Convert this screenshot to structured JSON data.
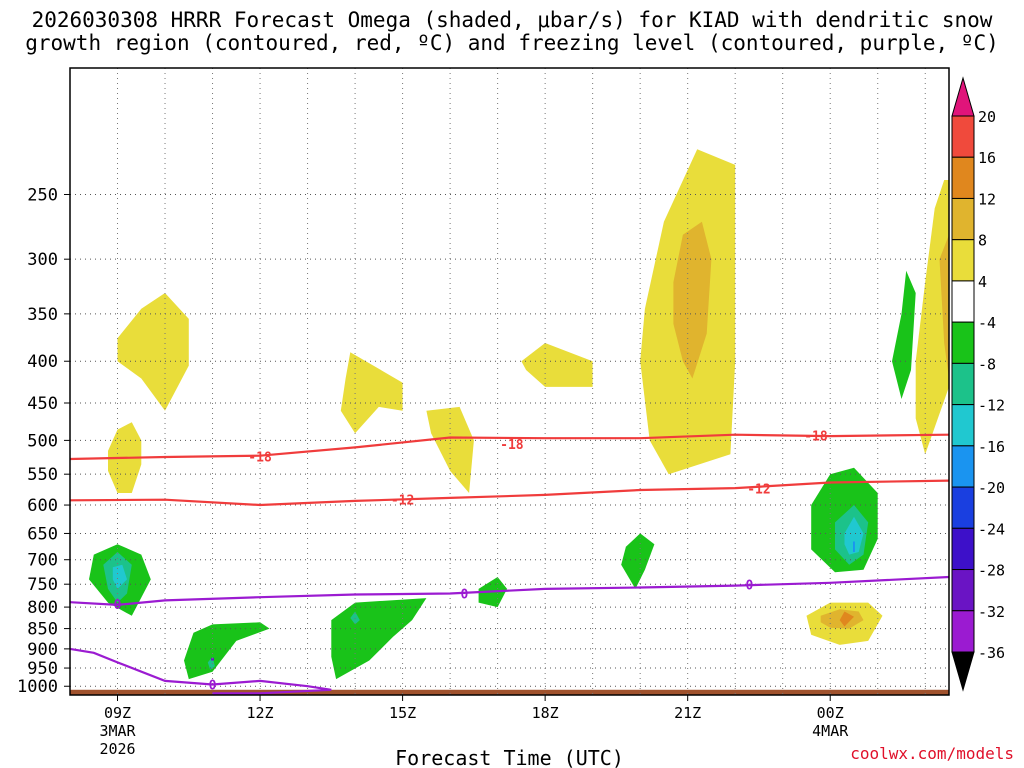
{
  "title_line1": "2026030308 HRRR Forecast Omega (shaded, μbar/s) for KIAD with dendritic snow",
  "title_line2": "growth region (contoured, red, ºC) and freezing level (contoured, purple, ºC)",
  "credit": "coolwx.com/models",
  "chart_data": {
    "type": "time-height cross section (filled contours)",
    "xlabel": "Forecast Time (UTC)",
    "x_hours_range": [
      8,
      26.5
    ],
    "x_ticks": [
      {
        "hour": 9,
        "label": "09Z",
        "sub1": "3MAR",
        "sub2": "2026"
      },
      {
        "hour": 12,
        "label": "12Z"
      },
      {
        "hour": 15,
        "label": "15Z"
      },
      {
        "hour": 18,
        "label": "18Z"
      },
      {
        "hour": 21,
        "label": "21Z"
      },
      {
        "hour": 24,
        "label": "00Z",
        "sub1": "4MAR"
      }
    ],
    "y_axis": "pressure (hPa), log scale",
    "y_range_hpa": [
      1025,
      175
    ],
    "y_ticks": [
      250,
      300,
      350,
      400,
      450,
      500,
      550,
      600,
      650,
      700,
      750,
      800,
      850,
      900,
      950,
      1000
    ],
    "colorbar": {
      "levels": [
        -36,
        -32,
        -28,
        -24,
        -20,
        -16,
        -12,
        -8,
        -4,
        4,
        8,
        12,
        16,
        20
      ],
      "colors": [
        "#aaaaaa",
        "#9b1bd1",
        "#6a14c4",
        "#3d10c9",
        "#1a3fe0",
        "#1a94f0",
        "#20c8d0",
        "#1cc28a",
        "#19c319",
        "#ffffff",
        "#e9dd3a",
        "#e0b42e",
        "#e0871e",
        "#f04a3c",
        "#e0147a"
      ]
    },
    "isotherms": [
      {
        "value": -18,
        "label": "-18",
        "color": "#f03c3c",
        "points": [
          [
            8,
            527
          ],
          [
            10,
            524
          ],
          [
            12,
            522
          ],
          [
            14,
            510
          ],
          [
            16,
            496
          ],
          [
            18,
            497
          ],
          [
            20,
            497
          ],
          [
            22,
            492
          ],
          [
            24,
            494
          ],
          [
            26.5,
            492
          ]
        ]
      },
      {
        "value": -12,
        "label": "-12",
        "color": "#f03c3c",
        "points": [
          [
            8,
            592
          ],
          [
            10,
            591
          ],
          [
            12,
            600
          ],
          [
            14,
            593
          ],
          [
            16,
            588
          ],
          [
            18,
            583
          ],
          [
            20,
            575
          ],
          [
            22,
            572
          ],
          [
            24,
            563
          ],
          [
            26.5,
            560
          ]
        ]
      },
      {
        "value": 0,
        "label": "0",
        "color": "#9b1bd1",
        "points": [
          [
            8,
            789
          ],
          [
            9,
            795
          ],
          [
            10,
            785
          ],
          [
            12,
            778
          ],
          [
            14,
            772
          ],
          [
            16,
            770
          ],
          [
            18,
            760
          ],
          [
            20,
            757
          ],
          [
            22,
            753
          ],
          [
            24,
            747
          ],
          [
            26.5,
            735
          ]
        ]
      },
      {
        "value": 0,
        "label": "0",
        "color": "#9b1bd1",
        "points": [
          [
            8,
            900
          ],
          [
            8.5,
            910
          ],
          [
            9,
            935
          ],
          [
            10,
            985
          ],
          [
            11,
            995
          ],
          [
            12,
            985
          ],
          [
            13,
            1000
          ],
          [
            13.5,
            1010
          ],
          [
            12,
            1020
          ],
          [
            11,
            1020
          ]
        ]
      }
    ],
    "omega_regions": [
      {
        "level": 4,
        "points": [
          [
            9,
            375
          ],
          [
            9.5,
            345
          ],
          [
            10,
            330
          ],
          [
            10.5,
            355
          ],
          [
            10.5,
            405
          ],
          [
            10,
            460
          ],
          [
            9.5,
            420
          ],
          [
            9,
            400
          ]
        ]
      },
      {
        "level": 4,
        "points": [
          [
            9,
            485
          ],
          [
            9.3,
            475
          ],
          [
            9.5,
            500
          ],
          [
            9.5,
            535
          ],
          [
            9.3,
            580
          ],
          [
            9,
            580
          ],
          [
            8.8,
            545
          ],
          [
            8.8,
            515
          ]
        ]
      },
      {
        "level": 4,
        "points": [
          [
            13.8,
            420
          ],
          [
            13.9,
            390
          ],
          [
            15,
            425
          ],
          [
            15,
            460
          ],
          [
            14.5,
            455
          ],
          [
            14,
            490
          ],
          [
            13.7,
            460
          ]
        ]
      },
      {
        "level": 4,
        "points": [
          [
            15.5,
            460
          ],
          [
            16.2,
            455
          ],
          [
            16.5,
            500
          ],
          [
            16.4,
            580
          ],
          [
            16,
            545
          ],
          [
            15.6,
            490
          ]
        ]
      },
      {
        "level": 4,
        "points": [
          [
            17.5,
            400
          ],
          [
            18,
            380
          ],
          [
            19,
            400
          ],
          [
            19,
            430
          ],
          [
            18,
            430
          ],
          [
            17.6,
            410
          ]
        ]
      },
      {
        "level": 4,
        "points": [
          [
            20.1,
            345
          ],
          [
            20.5,
            270
          ],
          [
            21.2,
            220
          ],
          [
            22,
            230
          ],
          [
            22,
            400
          ],
          [
            21.9,
            520
          ],
          [
            20.6,
            550
          ],
          [
            20.2,
            500
          ],
          [
            20,
            400
          ]
        ]
      },
      {
        "level": 8,
        "points": [
          [
            20.7,
            320
          ],
          [
            20.9,
            280
          ],
          [
            21.3,
            270
          ],
          [
            21.5,
            300
          ],
          [
            21.4,
            370
          ],
          [
            21.1,
            420
          ],
          [
            20.9,
            400
          ],
          [
            20.7,
            360
          ]
        ]
      },
      {
        "level": 4,
        "points": [
          [
            23.5,
            820
          ],
          [
            24,
            790
          ],
          [
            24.8,
            790
          ],
          [
            25.1,
            820
          ],
          [
            24.8,
            880
          ],
          [
            24.2,
            890
          ],
          [
            23.6,
            865
          ]
        ]
      },
      {
        "level": 8,
        "points": [
          [
            23.8,
            820
          ],
          [
            24.2,
            805
          ],
          [
            24.6,
            810
          ],
          [
            24.7,
            830
          ],
          [
            24.4,
            850
          ],
          [
            24,
            848
          ],
          [
            23.8,
            835
          ]
        ]
      },
      {
        "level": 12,
        "points": [
          [
            24.3,
            810
          ],
          [
            24.5,
            822
          ],
          [
            24.3,
            845
          ],
          [
            24.2,
            830
          ]
        ]
      },
      {
        "level": 4,
        "points": [
          [
            26,
            320
          ],
          [
            26.2,
            260
          ],
          [
            26.4,
            240
          ],
          [
            26.5,
            240
          ],
          [
            26.5,
            430
          ],
          [
            26,
            520
          ],
          [
            25.8,
            470
          ],
          [
            25.8,
            400
          ]
        ]
      },
      {
        "level": 8,
        "points": [
          [
            26.3,
            300
          ],
          [
            26.5,
            280
          ],
          [
            26.5,
            420
          ],
          [
            26.4,
            380
          ]
        ]
      },
      {
        "level": -4,
        "points": [
          [
            8.5,
            690
          ],
          [
            9,
            670
          ],
          [
            9.5,
            690
          ],
          [
            9.7,
            740
          ],
          [
            9.3,
            820
          ],
          [
            8.8,
            790
          ],
          [
            8.4,
            740
          ]
        ]
      },
      {
        "level": -8,
        "points": [
          [
            8.7,
            710
          ],
          [
            9,
            685
          ],
          [
            9.3,
            710
          ],
          [
            9.2,
            770
          ],
          [
            9,
            790
          ],
          [
            8.8,
            760
          ]
        ]
      },
      {
        "level": -12,
        "points": [
          [
            8.9,
            715
          ],
          [
            9.1,
            710
          ],
          [
            9.2,
            740
          ],
          [
            9,
            760
          ],
          [
            8.9,
            740
          ]
        ]
      },
      {
        "level": -4,
        "points": [
          [
            10.6,
            860
          ],
          [
            11,
            840
          ],
          [
            12,
            835
          ],
          [
            12.2,
            850
          ],
          [
            11.5,
            880
          ],
          [
            11,
            960
          ],
          [
            10.5,
            980
          ],
          [
            10.4,
            930
          ]
        ]
      },
      {
        "level": -8,
        "points": [
          [
            10.9,
            935
          ],
          [
            11,
            920
          ],
          [
            11.05,
            945
          ],
          [
            10.95,
            955
          ]
        ]
      },
      {
        "level": -28,
        "points": [
          [
            10.97,
            923
          ],
          [
            11.03,
            923
          ],
          [
            11.03,
            930
          ],
          [
            10.97,
            930
          ]
        ]
      },
      {
        "level": -4,
        "points": [
          [
            13.5,
            830
          ],
          [
            14,
            790
          ],
          [
            15.5,
            780
          ],
          [
            15.2,
            830
          ],
          [
            14.8,
            870
          ],
          [
            14.3,
            930
          ],
          [
            13.6,
            980
          ],
          [
            13.5,
            920
          ]
        ]
      },
      {
        "level": -8,
        "points": [
          [
            13.9,
            825
          ],
          [
            14,
            810
          ],
          [
            14.1,
            830
          ],
          [
            14,
            840
          ]
        ]
      },
      {
        "level": -4,
        "points": [
          [
            16.6,
            760
          ],
          [
            17,
            735
          ],
          [
            17.2,
            760
          ],
          [
            17,
            800
          ],
          [
            16.6,
            790
          ]
        ]
      },
      {
        "level": -4,
        "points": [
          [
            19.7,
            675
          ],
          [
            20,
            650
          ],
          [
            20.3,
            670
          ],
          [
            20.1,
            720
          ],
          [
            19.9,
            760
          ],
          [
            19.6,
            710
          ]
        ]
      },
      {
        "level": -4,
        "points": [
          [
            23.6,
            600
          ],
          [
            24,
            550
          ],
          [
            24.5,
            540
          ],
          [
            25,
            580
          ],
          [
            25,
            660
          ],
          [
            24.7,
            720
          ],
          [
            24.1,
            725
          ],
          [
            23.6,
            680
          ]
        ]
      },
      {
        "level": -8,
        "points": [
          [
            24.1,
            630
          ],
          [
            24.5,
            600
          ],
          [
            24.8,
            630
          ],
          [
            24.7,
            690
          ],
          [
            24.4,
            710
          ],
          [
            24.1,
            680
          ]
        ]
      },
      {
        "level": -12,
        "points": [
          [
            24.3,
            650
          ],
          [
            24.5,
            620
          ],
          [
            24.7,
            650
          ],
          [
            24.6,
            685
          ],
          [
            24.4,
            690
          ],
          [
            24.3,
            670
          ]
        ]
      },
      {
        "level": -16,
        "points": [
          [
            24.48,
            665
          ],
          [
            24.52,
            665
          ],
          [
            24.52,
            685
          ],
          [
            24.48,
            685
          ]
        ]
      },
      {
        "level": -4,
        "points": [
          [
            25.5,
            350
          ],
          [
            25.6,
            310
          ],
          [
            25.8,
            330
          ],
          [
            25.7,
            410
          ],
          [
            25.5,
            445
          ],
          [
            25.3,
            400
          ]
        ]
      }
    ]
  }
}
